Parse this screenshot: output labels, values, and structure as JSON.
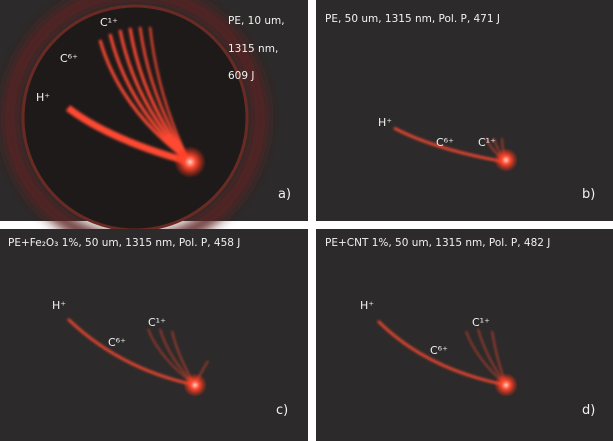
{
  "panels": [
    {
      "caption": [
        "PE, 10 um,",
        "1315 nm,",
        "609 J"
      ],
      "letter": "a)",
      "labels": {
        "h": "H⁺",
        "c6": "C⁶⁺",
        "c1": "C¹⁺"
      }
    },
    {
      "caption": [
        "PE, 50 um, 1315 nm,  Pol. P, 471 J"
      ],
      "letter": "b)",
      "labels": {
        "h": "H⁺",
        "c6": "C⁶⁺",
        "c1": "C¹⁺"
      }
    },
    {
      "caption": [
        "PE+Fe₂O₃ 1%, 50 um, 1315 nm,  Pol. P, 458 J"
      ],
      "letter": "c)",
      "labels": {
        "h": "H⁺",
        "c6": "C⁶⁺",
        "c1": "C¹⁺"
      }
    },
    {
      "caption": [
        "PE+CNT 1%, 50 um, 1315 nm,  Pol. P, 482 J"
      ],
      "letter": "d)",
      "labels": {
        "h": "H⁺",
        "c6": "C⁶⁺",
        "c1": "C¹⁺"
      }
    }
  ]
}
